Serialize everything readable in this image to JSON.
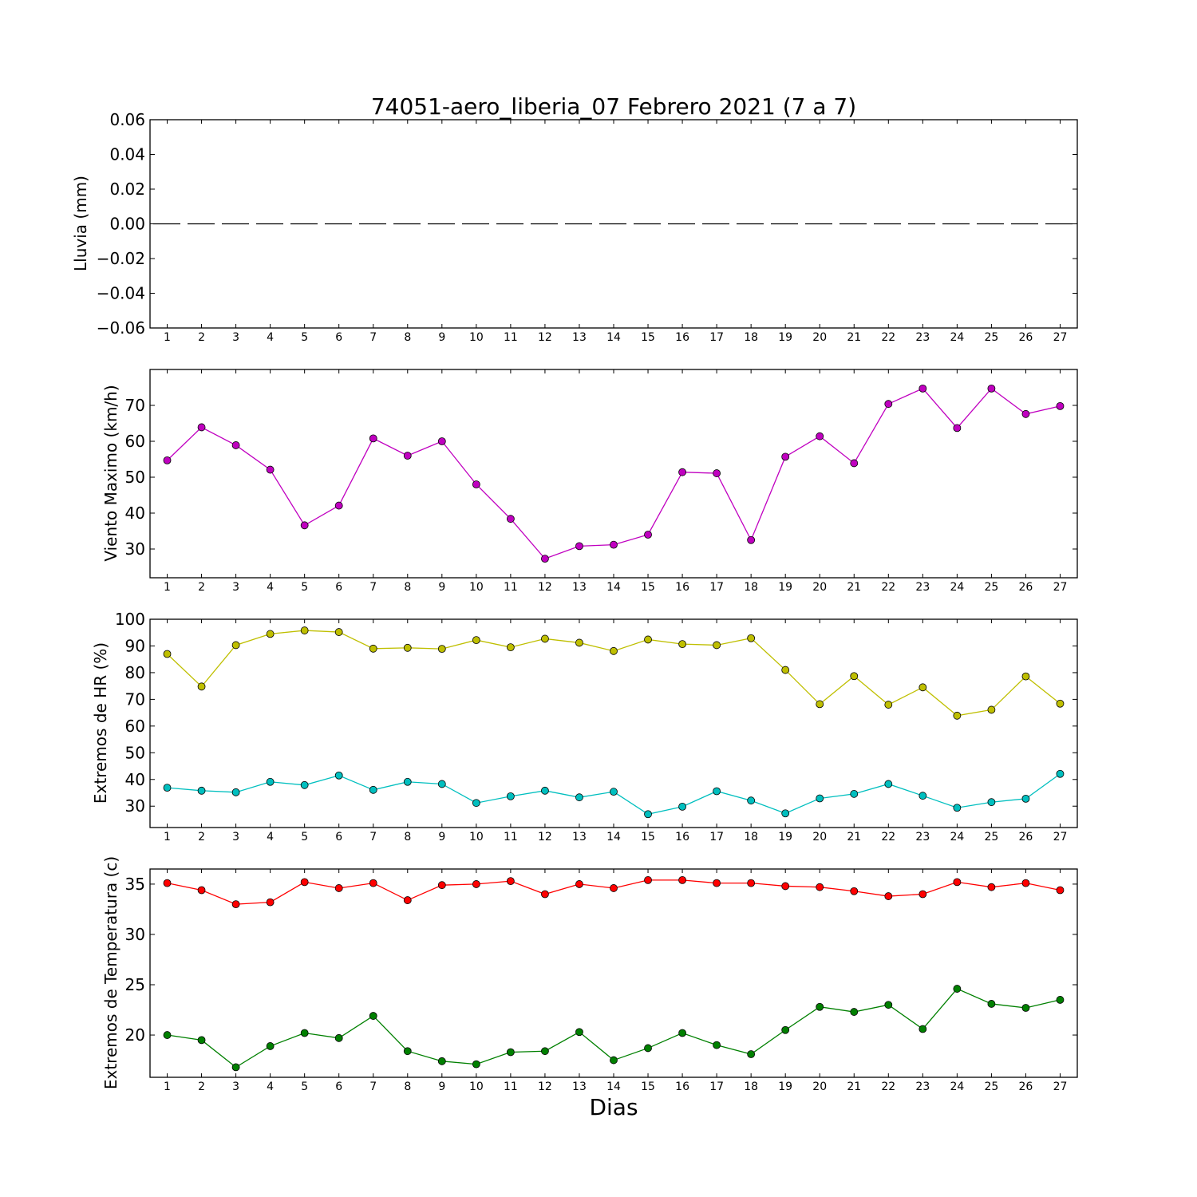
{
  "chart_data": [
    {
      "type": "line",
      "title": "74051-aero_liberia_07 Febrero 2021  (7 a 7)",
      "xlabel": "",
      "ylabel": "Lluvia (mm)",
      "ylim": [
        -0.06,
        0.06
      ],
      "yticks": [
        {
          "value": 0.06,
          "label": "0.06"
        },
        {
          "value": 0.04,
          "label": "0.04"
        },
        {
          "value": 0.02,
          "label": "0.02"
        },
        {
          "value": 0.0,
          "label": "0.00"
        },
        {
          "value": -0.02,
          "label": "−0.02"
        },
        {
          "value": -0.04,
          "label": "−0.04"
        },
        {
          "value": -0.06,
          "label": "−0.06"
        }
      ],
      "x": [
        1,
        2,
        3,
        4,
        5,
        6,
        7,
        8,
        9,
        10,
        11,
        12,
        13,
        14,
        15,
        16,
        17,
        18,
        19,
        20,
        21,
        22,
        23,
        24,
        25,
        26,
        27
      ],
      "series": [
        {
          "color": "#000000",
          "style": "dashed",
          "marker": false,
          "values": [
            0,
            0,
            0,
            0,
            0,
            0,
            0,
            0,
            0,
            0,
            0,
            0,
            0,
            0,
            0,
            0,
            0,
            0,
            0,
            0,
            0,
            0,
            0,
            0,
            0,
            0,
            0
          ]
        }
      ]
    },
    {
      "type": "line",
      "xlabel": "",
      "ylabel": "Viento Maximo (km/h)",
      "ylim": [
        22,
        80
      ],
      "yticks": [
        {
          "value": 30,
          "label": "30"
        },
        {
          "value": 40,
          "label": "40"
        },
        {
          "value": 50,
          "label": "50"
        },
        {
          "value": 60,
          "label": "60"
        },
        {
          "value": 70,
          "label": "70"
        }
      ],
      "x": [
        1,
        2,
        3,
        4,
        5,
        6,
        7,
        8,
        9,
        10,
        11,
        12,
        13,
        14,
        15,
        16,
        17,
        18,
        19,
        20,
        21,
        22,
        23,
        24,
        25,
        26,
        27
      ],
      "series": [
        {
          "color": "#c000c0",
          "style": "solid",
          "marker": true,
          "values": [
            54.7,
            63.9,
            58.9,
            52.1,
            36.6,
            42.1,
            60.8,
            56.0,
            60.0,
            48.0,
            38.4,
            27.3,
            30.8,
            31.2,
            34.0,
            51.4,
            51.1,
            32.5,
            55.7,
            61.4,
            53.9,
            70.4,
            74.7,
            63.7,
            74.7,
            67.6,
            69.8
          ]
        }
      ]
    },
    {
      "type": "line",
      "xlabel": "",
      "ylabel": "Extremos de HR (%)",
      "ylim": [
        22,
        100
      ],
      "yticks": [
        {
          "value": 30,
          "label": "30"
        },
        {
          "value": 40,
          "label": "40"
        },
        {
          "value": 50,
          "label": "50"
        },
        {
          "value": 60,
          "label": "60"
        },
        {
          "value": 70,
          "label": "70"
        },
        {
          "value": 80,
          "label": "80"
        },
        {
          "value": 90,
          "label": "90"
        },
        {
          "value": 100,
          "label": "100"
        }
      ],
      "x": [
        1,
        2,
        3,
        4,
        5,
        6,
        7,
        8,
        9,
        10,
        11,
        12,
        13,
        14,
        15,
        16,
        17,
        18,
        19,
        20,
        21,
        22,
        23,
        24,
        25,
        26,
        27
      ],
      "series": [
        {
          "color": "#bfbf00",
          "style": "solid",
          "marker": true,
          "values": [
            87.0,
            74.8,
            90.3,
            94.5,
            95.8,
            95.2,
            89.0,
            89.3,
            88.9,
            92.2,
            89.5,
            92.7,
            91.2,
            88.1,
            92.4,
            90.7,
            90.3,
            92.9,
            81.0,
            68.2,
            78.7,
            68.0,
            74.5,
            63.9,
            66.1,
            78.6,
            68.4
          ]
        },
        {
          "color": "#00bfbf",
          "style": "solid",
          "marker": true,
          "values": [
            36.9,
            35.8,
            35.2,
            39.1,
            37.9,
            41.5,
            36.1,
            39.1,
            38.3,
            31.2,
            33.7,
            35.8,
            33.3,
            35.4,
            27.0,
            29.8,
            35.6,
            32.1,
            27.3,
            32.9,
            34.6,
            38.3,
            33.9,
            29.4,
            31.5,
            32.8,
            42.1
          ]
        }
      ]
    },
    {
      "type": "line",
      "xlabel": "Dias",
      "ylabel": "Extremos de Temperatura (c)",
      "ylim": [
        15.8,
        36.5
      ],
      "yticks": [
        {
          "value": 20,
          "label": "20"
        },
        {
          "value": 25,
          "label": "25"
        },
        {
          "value": 30,
          "label": "30"
        },
        {
          "value": 35,
          "label": "35"
        }
      ],
      "x": [
        1,
        2,
        3,
        4,
        5,
        6,
        7,
        8,
        9,
        10,
        11,
        12,
        13,
        14,
        15,
        16,
        17,
        18,
        19,
        20,
        21,
        22,
        23,
        24,
        25,
        26,
        27
      ],
      "series": [
        {
          "color": "#ff0000",
          "style": "solid",
          "marker": true,
          "values": [
            35.1,
            34.4,
            33.0,
            33.2,
            35.2,
            34.6,
            35.1,
            33.4,
            34.9,
            35.0,
            35.3,
            34.0,
            35.0,
            34.6,
            35.4,
            35.4,
            35.1,
            35.1,
            34.8,
            34.7,
            34.3,
            33.8,
            34.0,
            35.2,
            34.7,
            35.1,
            34.4
          ]
        },
        {
          "color": "#008000",
          "style": "solid",
          "marker": true,
          "values": [
            20.0,
            19.5,
            16.8,
            18.9,
            20.2,
            19.7,
            21.9,
            18.4,
            17.4,
            17.1,
            18.3,
            18.4,
            20.3,
            17.5,
            18.7,
            20.2,
            19.0,
            18.1,
            20.5,
            22.8,
            22.3,
            23.0,
            20.6,
            24.6,
            23.1,
            22.7,
            23.5
          ]
        }
      ]
    }
  ]
}
